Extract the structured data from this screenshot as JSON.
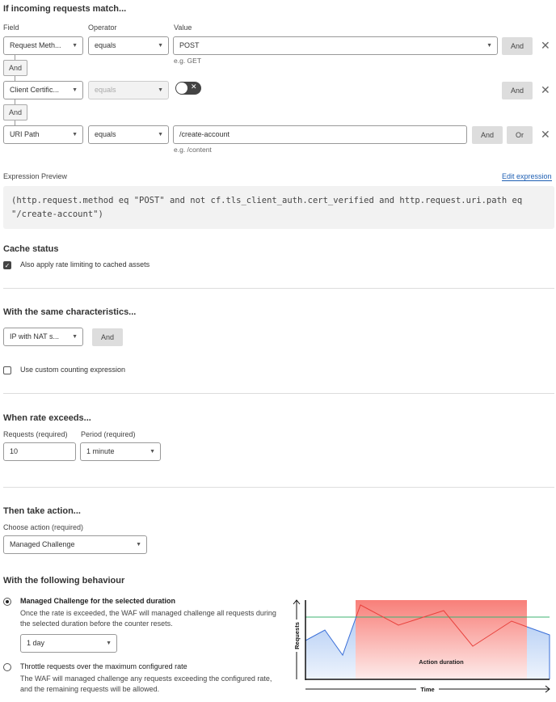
{
  "match": {
    "title": "If incoming requests match...",
    "field_label": "Field",
    "operator_label": "Operator",
    "value_label": "Value",
    "rows": [
      {
        "field": "Request Meth...",
        "operator": "equals",
        "value": "POST",
        "hint": "e.g. GET",
        "and": "And"
      },
      {
        "field": "Client Certific...",
        "operator": "equals",
        "toggle_on": false,
        "and": "And"
      },
      {
        "field": "URI Path",
        "operator": "equals",
        "value": "/create-account",
        "hint": "e.g. /content",
        "and": "And",
        "or": "Or"
      }
    ],
    "connector": "And"
  },
  "expression": {
    "label": "Expression Preview",
    "edit": "Edit expression",
    "code": "(http.request.method eq \"POST\" and not cf.tls_client_auth.cert_verified and http.request.uri.path eq \"/create-account\")"
  },
  "cache": {
    "title": "Cache status",
    "checkbox": "Also apply rate limiting to cached assets",
    "checked": true
  },
  "characteristics": {
    "title": "With the same characteristics...",
    "select": "IP with NAT s...",
    "and": "And",
    "custom": "Use custom counting expression",
    "custom_checked": false
  },
  "rate": {
    "title": "When rate exceeds...",
    "requests_label": "Requests (required)",
    "requests": "10",
    "period_label": "Period (required)",
    "period": "1 minute"
  },
  "action": {
    "title": "Then take action...",
    "label": "Choose action (required)",
    "value": "Managed Challenge"
  },
  "behaviour": {
    "title": "With the following behaviour",
    "option1_title": "Managed Challenge for the selected duration",
    "option1_desc": "Once the rate is exceeded, the WAF will managed challenge all requests during the selected duration before the counter resets.",
    "duration": "1 day",
    "option1_selected": true,
    "option2_title": "Throttle requests over the maximum configured rate",
    "option2_desc": "The WAF will managed challenge any requests exceeding the configured rate, and the remaining requests will be allowed.",
    "option2_selected": false
  },
  "diagram": {
    "y_label": "Requests",
    "x_label": "Time",
    "band_label": "Action duration",
    "colors": {
      "threshold": "#3cb371",
      "normal": "#3a6fd8",
      "exceeded": "#e8413c",
      "band": "#f87f79"
    }
  }
}
